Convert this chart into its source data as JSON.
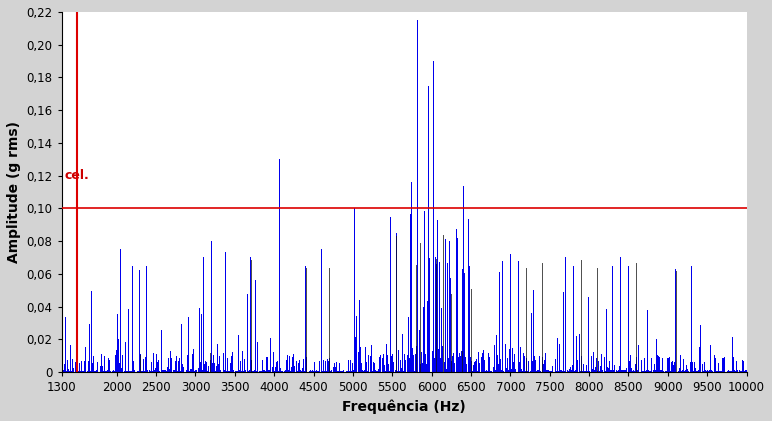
{
  "xlabel": "Frequência (Hz)",
  "ylabel": "Amplitude (g rms)",
  "xlim": [
    1300,
    10000
  ],
  "ylim": [
    0,
    0.22
  ],
  "yticks": [
    0,
    0.02,
    0.04,
    0.06,
    0.08,
    0.1,
    0.12,
    0.14,
    0.16,
    0.18,
    0.2,
    0.22
  ],
  "xticks": [
    1300,
    2000,
    2500,
    3000,
    3500,
    4000,
    4500,
    5000,
    5500,
    6000,
    6500,
    7000,
    7500,
    8000,
    8500,
    9000,
    9500,
    10000
  ],
  "red_vline_x": 1490,
  "red_hline_y": 0.1,
  "background_color": "#d3d3d3",
  "plot_bg_color": "#ffffff",
  "bar_color": "#0000ee",
  "dark_bar_color": "#111111",
  "red_line_color": "#dd0000",
  "annotation_text": "cel.",
  "annotation_color": "#cc0000",
  "seed": 12345
}
